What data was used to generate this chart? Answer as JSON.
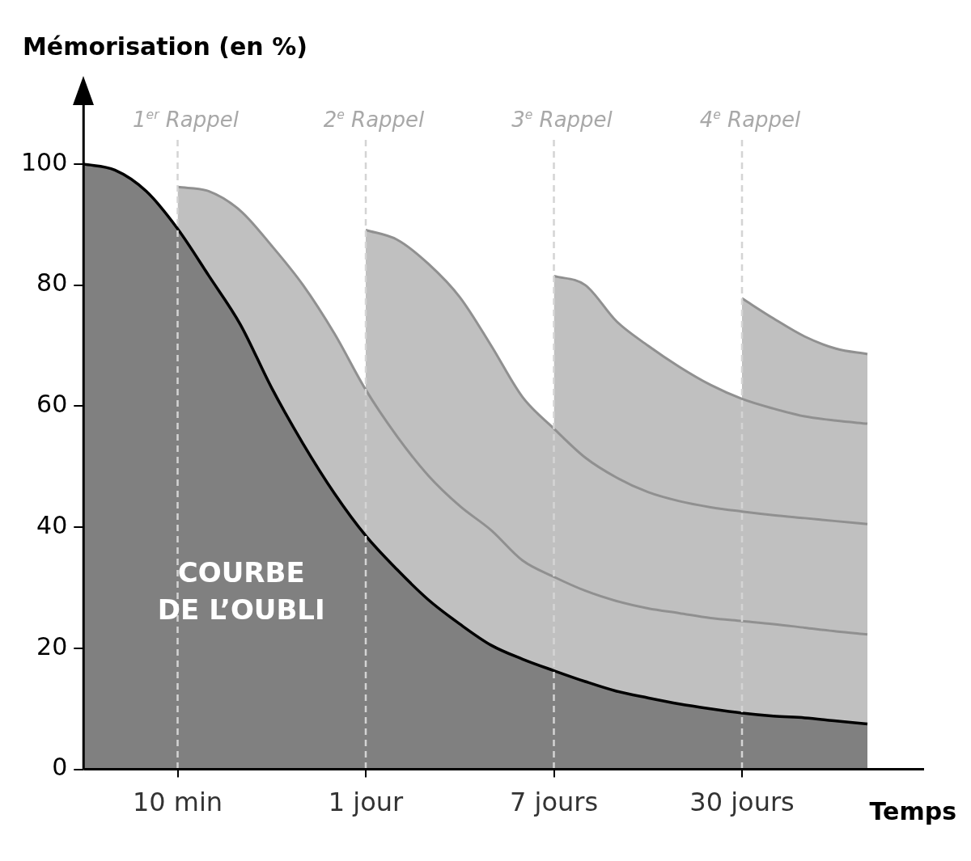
{
  "chart_data": {
    "type": "area",
    "ylabel": "Mémorisation (en %)",
    "xlabel": "Temps",
    "categories": [
      null,
      null,
      null,
      "10 min",
      null,
      null,
      null,
      null,
      null,
      "1 jour",
      null,
      null,
      null,
      null,
      null,
      "7 jours",
      null,
      null,
      null,
      null,
      null,
      "30 jours",
      null,
      null,
      null,
      null
    ],
    "series": [
      {
        "name": "COURBE DE L’OUBLI",
        "color": "#808080",
        "values": [
          100,
          99,
          95.5,
          89.3,
          81.5,
          73.5,
          63,
          53.8,
          45.6,
          38.6,
          33,
          28,
          24,
          20.5,
          18.2,
          16.3,
          14.5,
          12.9,
          11.8,
          10.8,
          10,
          9.3,
          8.8,
          8.5,
          8,
          7.5
        ]
      },
      {
        "color": "#c0c0c0",
        "values": [
          null,
          null,
          null,
          96.2,
          95.5,
          92.3,
          86.5,
          80,
          72,
          62.7,
          55,
          48.5,
          43.5,
          39.5,
          34.5,
          31.8,
          29.5,
          27.8,
          26.6,
          25.8,
          25,
          24.5,
          24,
          23.4,
          22.8,
          22.3
        ]
      },
      {
        "color": "#c0c0c0",
        "values": [
          null,
          null,
          null,
          null,
          null,
          null,
          null,
          null,
          null,
          89.1,
          87.5,
          83.5,
          78,
          70,
          61.5,
          56.3,
          51.5,
          48.2,
          45.8,
          44.3,
          43.3,
          42.6,
          42,
          41.5,
          41,
          40.5
        ]
      },
      {
        "color": "#c0c0c0",
        "values": [
          null,
          null,
          null,
          null,
          null,
          null,
          null,
          null,
          null,
          null,
          null,
          null,
          null,
          null,
          null,
          81.5,
          80,
          74,
          70,
          66.5,
          63.5,
          61.2,
          59.6,
          58.3,
          57.6,
          57.1
        ]
      },
      {
        "color": "#c0c0c0",
        "values": [
          null,
          null,
          null,
          null,
          null,
          null,
          null,
          null,
          null,
          null,
          null,
          null,
          null,
          null,
          null,
          null,
          null,
          null,
          null,
          null,
          null,
          77.8,
          74.5,
          71.5,
          69.5,
          68.6
        ]
      }
    ],
    "ylim": [
      0,
      110
    ],
    "yticks": [
      0,
      20,
      40,
      60,
      80,
      100
    ],
    "ref_lines": [
      {
        "axis": "x",
        "value": "10 min",
        "label": "1$^{er}$ Rappel",
        "color": "#d4d4d4",
        "line_style": "dashed"
      },
      {
        "axis": "x",
        "value": "1 jour",
        "label": "2$^{e}$ Rappel",
        "color": "#d4d4d4",
        "line_style": "dashed"
      },
      {
        "axis": "x",
        "value": "7 jours",
        "label": "3$^{e}$ Rappel",
        "color": "#d4d4d4",
        "line_style": "dashed"
      },
      {
        "axis": "x",
        "value": "30 jours",
        "label": "4$^{e}$ Rappel",
        "color": "#d4d4d4",
        "line_style": "dashed"
      }
    ]
  }
}
